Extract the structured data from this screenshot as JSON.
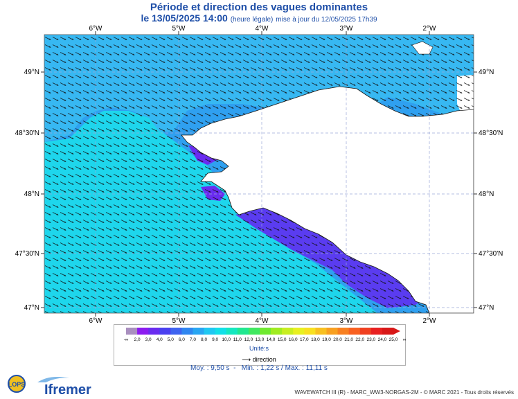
{
  "header": {
    "title": "Période et direction des vagues dominantes",
    "date": "le 13/05/2025 14:00",
    "note": "(heure légale)",
    "update": "mise à jour du 12/05/2025 17h39"
  },
  "axes": {
    "lon_labels": [
      "6°W",
      "5°W",
      "4°W",
      "3°W",
      "2°W"
    ],
    "lat_labels": [
      "49°N",
      "48°30'N",
      "48°N",
      "47°30'N",
      "47°N"
    ]
  },
  "legend": {
    "ticks": [
      "-∞",
      "2,0",
      "3,0",
      "4,0",
      "5,0",
      "6,0",
      "7,0",
      "8,0",
      "9,0",
      "10,0",
      "11,0",
      "12,0",
      "13,0",
      "14,0",
      "15,0",
      "16,0",
      "17,0",
      "18,0",
      "19,0",
      "20,0",
      "21,0",
      "22,0",
      "23,0",
      "24,0",
      "25,0",
      "∞"
    ],
    "unit": "Unité:s",
    "direction": "direction",
    "colors": [
      "#a98fbf",
      "#8c1cf0",
      "#6a2cf0",
      "#4a40f0",
      "#3e63f0",
      "#2f86f0",
      "#28a6f2",
      "#1fc8f2",
      "#12e0e8",
      "#14e8c0",
      "#20e890",
      "#40e860",
      "#70ea30",
      "#a0ec20",
      "#c8ee20",
      "#e8f020",
      "#f8e020",
      "#f8c020",
      "#f8a020",
      "#f88020",
      "#f86020",
      "#f04020",
      "#e82020",
      "#d81818"
    ]
  },
  "stats": {
    "mean": "Moy. : 9,50 s",
    "min": "Min. : 1,22 s",
    "max": "Max. : 11,11 s"
  },
  "footer": "WAVEWATCH III (R) - MARC_WW3-NORGAS-2M - © MARC 2021 - Tous droits réservés",
  "logos": {
    "lops": "LOPS",
    "ifremer": "Ifremer"
  },
  "map": {
    "sea_outer_color": "#2fa0f0",
    "sea_inner_color": "#1ed6ec",
    "land_color": "#ffffff",
    "purple_zone_color": "#5a3cf0",
    "mean_direction_deg": 110
  }
}
